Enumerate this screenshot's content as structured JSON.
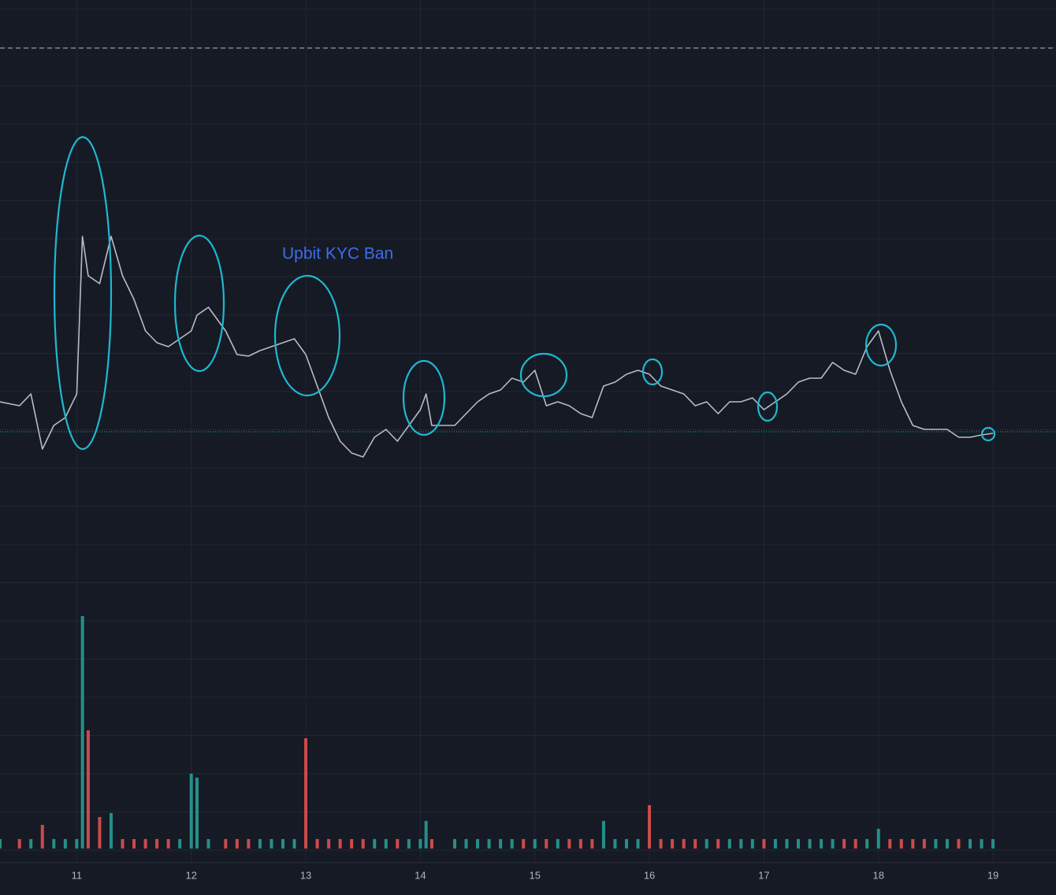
{
  "chart_data": {
    "type": "line",
    "annotation": "Upbit KYC Ban",
    "x": [
      10.33,
      10.5,
      10.6,
      10.7,
      10.8,
      10.9,
      11,
      11.05,
      11.1,
      11.2,
      11.3,
      11.4,
      11.5,
      11.6,
      11.7,
      11.8,
      11.9,
      12,
      12.05,
      12.15,
      12.3,
      12.4,
      12.5,
      12.6,
      12.7,
      12.8,
      12.9,
      13,
      13.1,
      13.2,
      13.3,
      13.4,
      13.5,
      13.6,
      13.7,
      13.8,
      13.9,
      14,
      14.05,
      14.1,
      14.3,
      14.4,
      14.5,
      14.6,
      14.7,
      14.8,
      14.9,
      15,
      15.1,
      15.2,
      15.3,
      15.4,
      15.5,
      15.6,
      15.7,
      15.8,
      15.9,
      16,
      16.1,
      16.2,
      16.3,
      16.4,
      16.5,
      16.6,
      16.7,
      16.8,
      16.9,
      17,
      17.1,
      17.2,
      17.3,
      17.4,
      17.5,
      17.6,
      17.7,
      17.8,
      17.9,
      18,
      18.1,
      18.2,
      18.3,
      18.4,
      18.5,
      18.6,
      18.7,
      18.8,
      18.9,
      19
    ],
    "series": [
      {
        "color": "#b8bcc6",
        "values": [
          290,
          285,
          300,
          230,
          260,
          270,
          300,
          500,
          450,
          440,
          500,
          450,
          420,
          380,
          365,
          360,
          370,
          380,
          400,
          410,
          380,
          350,
          348,
          355,
          360,
          365,
          370,
          350,
          310,
          270,
          240,
          225,
          220,
          245,
          255,
          240,
          260,
          280,
          300,
          260,
          260,
          275,
          290,
          300,
          305,
          320,
          315,
          330,
          285,
          290,
          285,
          275,
          270,
          310,
          315,
          325,
          330,
          325,
          310,
          305,
          300,
          285,
          290,
          275,
          290,
          290,
          295,
          280,
          290,
          300,
          315,
          320,
          320,
          340,
          330,
          325,
          360,
          380,
          330,
          290,
          260,
          255,
          255,
          255,
          245,
          245,
          248,
          250
        ]
      },
      {
        "axis": "y2",
        "color": "#26a69a",
        "values": [
          12,
          12,
          12,
          30,
          12,
          12,
          12,
          295,
          150,
          40,
          45,
          12,
          12,
          12,
          12,
          12,
          12,
          95,
          90,
          12,
          12,
          12,
          12,
          12,
          12,
          12,
          12,
          140,
          12,
          12,
          12,
          12,
          12,
          12,
          12,
          12,
          12,
          12,
          35,
          12,
          12,
          12,
          12,
          12,
          12,
          12,
          12,
          12,
          12,
          12,
          12,
          12,
          12,
          35,
          12,
          12,
          12,
          55,
          12,
          12,
          12,
          12,
          12,
          12,
          12,
          12,
          12,
          12,
          12,
          12,
          12,
          12,
          12,
          12,
          12,
          12,
          12,
          25,
          12,
          12,
          12,
          12,
          12,
          12,
          12,
          12,
          12,
          12
        ]
      }
    ],
    "xlim": [
      10.33,
      19.55
    ],
    "xticks": [
      11,
      12,
      13,
      14,
      15,
      16,
      17,
      18,
      19
    ],
    "ylim": [
      0,
      800
    ],
    "y2lim": [
      0,
      300
    ],
    "grid": true
  }
}
